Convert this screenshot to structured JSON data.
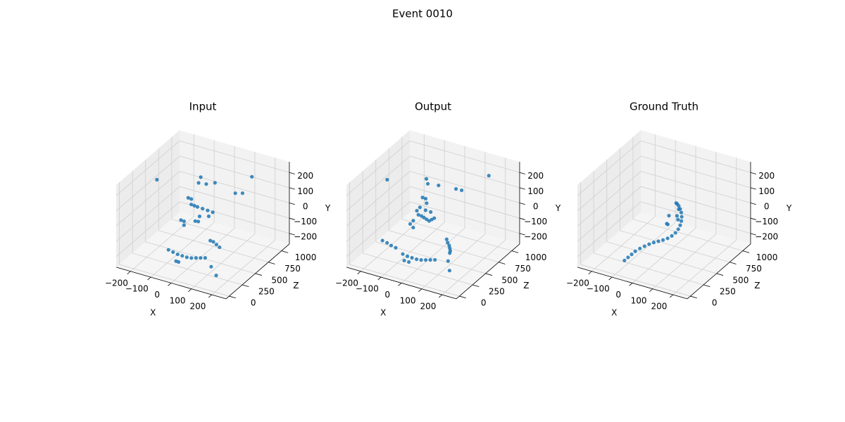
{
  "title": "Event 0010",
  "chart_data": [
    {
      "type": "scatter3d",
      "title": "Input",
      "xlabel": "X",
      "ylabel": "Y",
      "zlabel": "Z",
      "color": "#1f77b4",
      "x": [
        -240,
        -50,
        -40,
        -10,
        20,
        -60,
        -50,
        -40,
        -30,
        -20,
        0,
        20,
        40,
        -70,
        -60,
        -50,
        0,
        10,
        120,
        140,
        150,
        100,
        110,
        120,
        130,
        -80,
        -60,
        -40,
        -20,
        0,
        20,
        40,
        60,
        80,
        -30,
        -20,
        130,
        160,
        -30,
        10
      ],
      "y": [
        120,
        180,
        170,
        165,
        170,
        100,
        90,
        70,
        60,
        50,
        40,
        30,
        20,
        -20,
        -30,
        -40,
        0,
        -5,
        140,
        130,
        200,
        -60,
        -70,
        -90,
        -110,
        -160,
        -170,
        -180,
        -185,
        -190,
        -190,
        -185,
        -180,
        -175,
        -200,
        -205,
        -190,
        -230,
        -40,
        -30
      ],
      "z": [
        600,
        700,
        620,
        650,
        700,
        500,
        520,
        480,
        500,
        520,
        540,
        560,
        580,
        400,
        420,
        380,
        400,
        420,
        700,
        760,
        900,
        300,
        320,
        340,
        360,
        200,
        210,
        220,
        230,
        240,
        250,
        260,
        270,
        280,
        150,
        160,
        200,
        180,
        600,
        620
      ],
      "xlim": [
        -270,
        270
      ],
      "ylim": [
        -270,
        270
      ],
      "zlim": [
        -60,
        1150
      ],
      "xticks": [
        {
          "value": -200,
          "label": "−200"
        },
        {
          "value": -100,
          "label": "−100"
        },
        0,
        100,
        200
      ],
      "yticks": [
        {
          "value": -200,
          "label": "−200"
        },
        {
          "value": -100,
          "label": "−100"
        },
        0,
        100,
        200
      ],
      "zticks": [
        0,
        250,
        500,
        750,
        1000
      ]
    },
    {
      "type": "scatter3d",
      "title": "Output",
      "xlabel": "X",
      "ylabel": "Y",
      "zlabel": "Z",
      "color": "#1f77b4",
      "x": [
        -240,
        -60,
        -40,
        0,
        60,
        80,
        170,
        -40,
        -30,
        -20,
        -40,
        -50,
        -40,
        -30,
        -20,
        -10,
        0,
        10,
        20,
        0,
        -20,
        -60,
        -70,
        -50,
        130,
        135,
        140,
        140,
        140,
        135,
        -160,
        -140,
        -120,
        -100,
        -60,
        -40,
        -20,
        0,
        20,
        40,
        60,
        80,
        -40,
        -20,
        170,
        150
      ],
      "y": [
        120,
        180,
        170,
        160,
        130,
        120,
        200,
        110,
        100,
        80,
        60,
        40,
        20,
        10,
        0,
        -10,
        -20,
        -10,
        0,
        30,
        40,
        -20,
        -40,
        -50,
        -40,
        -60,
        -80,
        -100,
        -120,
        -140,
        -130,
        -140,
        -150,
        -160,
        -180,
        -190,
        -195,
        -200,
        -200,
        -195,
        -190,
        -185,
        -200,
        -205,
        -200,
        -160
      ],
      "z": [
        600,
        650,
        600,
        650,
        750,
        780,
        950,
        500,
        520,
        500,
        450,
        430,
        420,
        440,
        450,
        460,
        470,
        480,
        490,
        500,
        480,
        400,
        380,
        360,
        300,
        300,
        310,
        320,
        330,
        340,
        200,
        210,
        210,
        220,
        200,
        210,
        220,
        230,
        240,
        250,
        260,
        270,
        150,
        160,
        200,
        250
      ],
      "xlim": [
        -270,
        270
      ],
      "ylim": [
        -270,
        270
      ],
      "zlim": [
        -60,
        1150
      ],
      "xticks": [
        {
          "value": -200,
          "label": "−200"
        },
        {
          "value": -100,
          "label": "−100"
        },
        0,
        100,
        200
      ],
      "yticks": [
        {
          "value": -200,
          "label": "−200"
        },
        {
          "value": -100,
          "label": "−100"
        },
        0,
        100,
        200
      ],
      "zticks": [
        0,
        250,
        500,
        750,
        1000
      ]
    },
    {
      "type": "scatter3d",
      "title": "Ground Truth",
      "xlabel": "X",
      "ylabel": "Y",
      "zlabel": "Z",
      "color": "#1f77b4",
      "x": [
        -80,
        -70,
        -60,
        -50,
        -35,
        -20,
        -5,
        10,
        25,
        40,
        55,
        68,
        78,
        84,
        86,
        84,
        78,
        68,
        55,
        40,
        25,
        12,
        30,
        20,
        10,
        60,
        70,
        45
      ],
      "y": [
        -200,
        -185,
        -170,
        -155,
        -140,
        -128,
        -118,
        -110,
        -105,
        -100,
        -92,
        -80,
        -65,
        -48,
        -30,
        -12,
        5,
        20,
        30,
        35,
        33,
        25,
        -40,
        -45,
        -20,
        10,
        -5,
        20
      ],
      "z": [
        100,
        130,
        160,
        190,
        220,
        250,
        280,
        310,
        340,
        370,
        400,
        430,
        460,
        490,
        520,
        550,
        580,
        610,
        640,
        670,
        700,
        730,
        500,
        520,
        600,
        560,
        540,
        650
      ],
      "xlim": [
        -270,
        270
      ],
      "ylim": [
        -270,
        270
      ],
      "zlim": [
        -60,
        1150
      ],
      "xticks": [
        {
          "value": -200,
          "label": "−200"
        },
        {
          "value": -100,
          "label": "−100"
        },
        0,
        100,
        200
      ],
      "yticks": [
        {
          "value": -200,
          "label": "−200"
        },
        {
          "value": -100,
          "label": "−100"
        },
        0,
        100,
        200
      ],
      "zticks": [
        0,
        250,
        500,
        750,
        1000
      ]
    }
  ]
}
